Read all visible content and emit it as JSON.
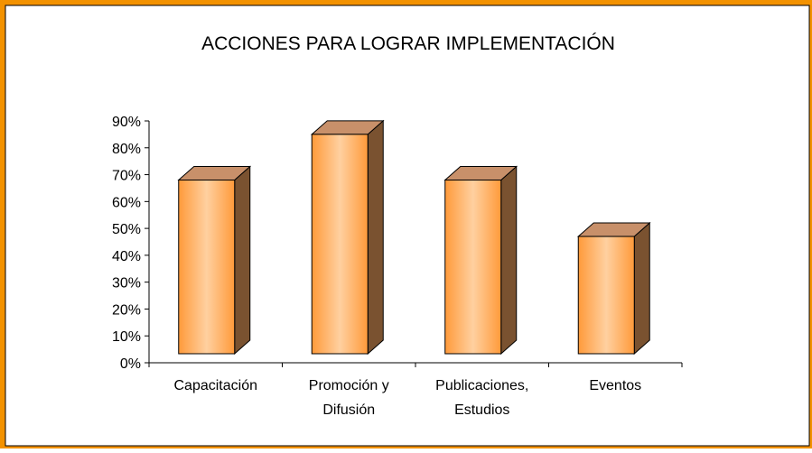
{
  "chart_data": {
    "type": "bar3d",
    "title": "ACCIONES PARA LOGRAR IMPLEMENTACIÓN",
    "categories": [
      [
        "Capacitación"
      ],
      [
        "Promoción y",
        "Difusión"
      ],
      [
        "Publicaciones,",
        "Estudios"
      ],
      [
        "Eventos"
      ]
    ],
    "values": [
      68,
      85,
      68,
      47
    ],
    "color": "#ffa040",
    "ylim": [
      0,
      90
    ],
    "yticks": [
      {
        "value": 0,
        "label": "0%"
      },
      {
        "value": 10,
        "label": "10%"
      },
      {
        "value": 20,
        "label": "20%"
      },
      {
        "value": 30,
        "label": "30%"
      },
      {
        "value": 40,
        "label": "40%"
      },
      {
        "value": 50,
        "label": "50%"
      },
      {
        "value": 60,
        "label": "60%"
      },
      {
        "value": 70,
        "label": "70%"
      },
      {
        "value": 80,
        "label": "80%"
      },
      {
        "value": 90,
        "label": "90%"
      }
    ]
  }
}
